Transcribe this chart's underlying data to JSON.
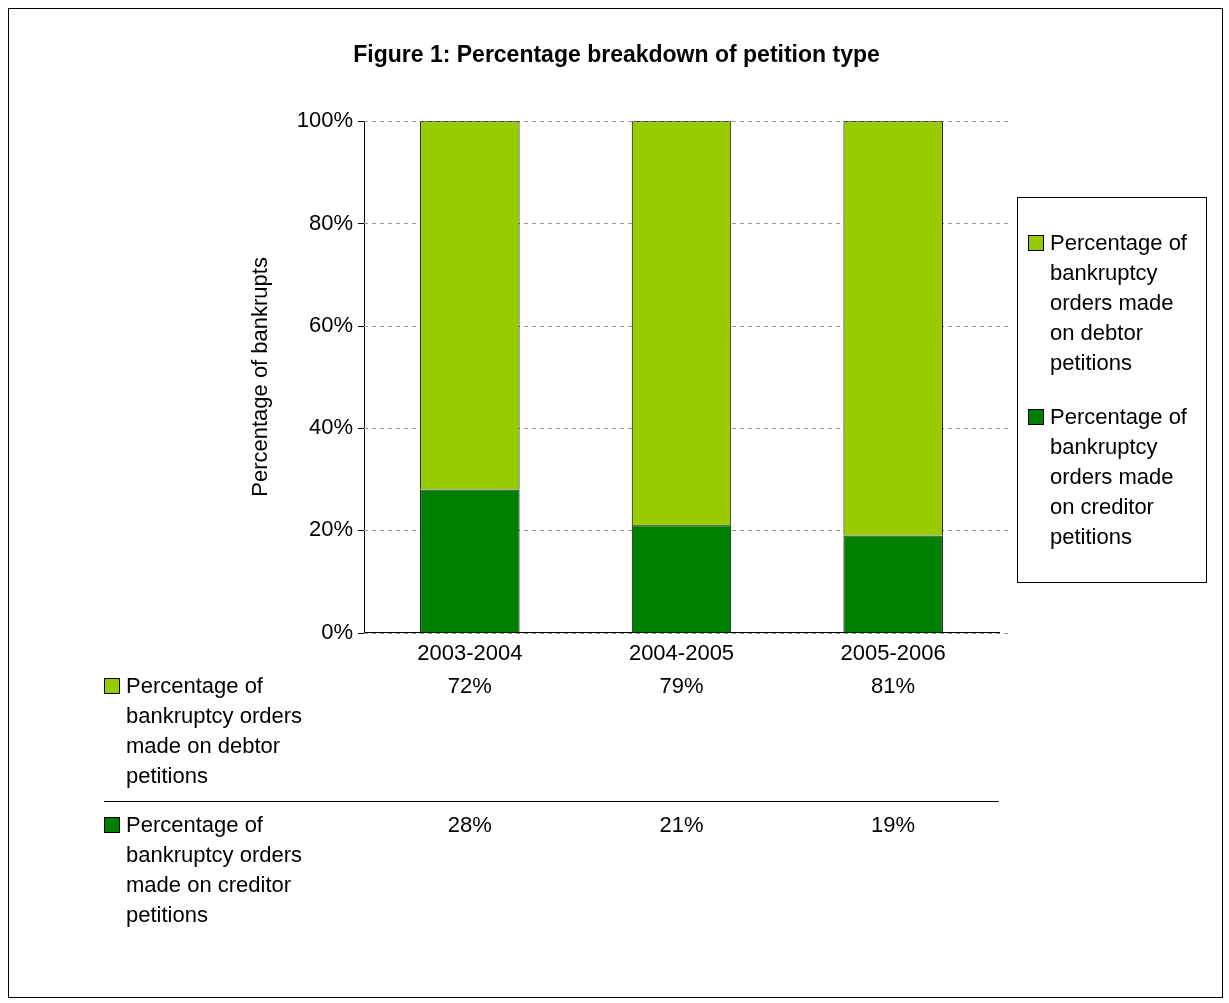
{
  "chart_data": {
    "type": "bar",
    "title": "Figure 1: Percentage breakdown of petition type",
    "ylabel": "Percentage of bankrupts",
    "categories": [
      "2003-2004",
      "2004-2005",
      "2005-2006"
    ],
    "stacked": true,
    "series": [
      {
        "name": "Percentage of bankruptcy orders made on creditor petitions",
        "color": "#008000",
        "values": [
          28,
          21,
          19
        ],
        "value_labels": [
          "28%",
          "21%",
          "19%"
        ]
      },
      {
        "name": "Percentage of bankruptcy orders made on debtor petitions",
        "color": "#99cc00",
        "values": [
          72,
          79,
          81
        ],
        "value_labels": [
          "72%",
          "79%",
          "81%"
        ]
      }
    ],
    "ylim": [
      0,
      100
    ],
    "yticks": [
      {
        "value": 0,
        "label": "0%"
      },
      {
        "value": 20,
        "label": "20%"
      },
      {
        "value": 40,
        "label": "40%"
      },
      {
        "value": 60,
        "label": "60%"
      },
      {
        "value": 80,
        "label": "80%"
      },
      {
        "value": 100,
        "label": "100%"
      }
    ],
    "grid": "y",
    "legend": "right"
  }
}
